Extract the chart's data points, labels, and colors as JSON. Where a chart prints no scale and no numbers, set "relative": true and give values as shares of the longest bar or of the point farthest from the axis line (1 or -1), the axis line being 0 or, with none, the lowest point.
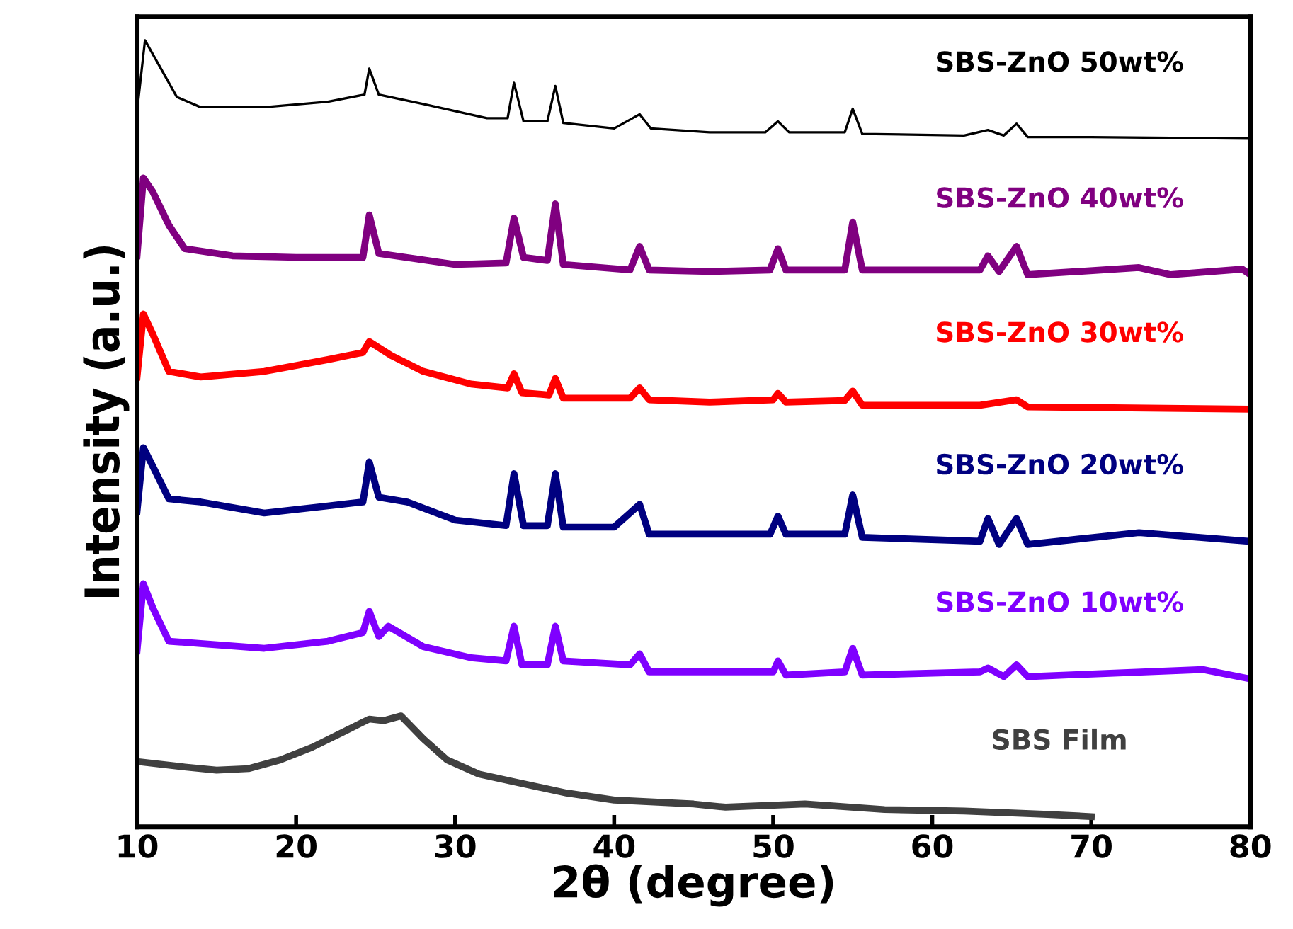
{
  "chart_data": {
    "type": "line",
    "xlabel": "2θ (degree)",
    "ylabel": "Intensity (a.u.)",
    "relative": true,
    "xlim": [
      10,
      80
    ],
    "xticks": [
      10,
      20,
      30,
      40,
      50,
      60,
      70,
      80
    ],
    "tick_labels": "x",
    "grid": false,
    "legend": false,
    "marker": "none",
    "line_style": "solid",
    "series": [
      {
        "name": "SBS-ZnO 50wt%",
        "color": "#000000",
        "x": [
          10,
          10.5,
          11.5,
          12.5,
          14,
          18,
          22,
          24.3,
          24.6,
          25.2,
          28,
          32,
          33.3,
          33.7,
          34.3,
          35.8,
          36.3,
          36.8,
          40,
          41.6,
          42.3,
          46,
          49.5,
          50.3,
          51,
          54.5,
          55,
          55.6,
          62,
          63.5,
          64.5,
          65.3,
          66,
          70,
          80
        ],
        "values": [
          0.91,
          1,
          0.964,
          0.928,
          0.915,
          0.915,
          0.922,
          0.931,
          0.964,
          0.931,
          0.919,
          0.901,
          0.901,
          0.946,
          0.897,
          0.897,
          0.942,
          0.895,
          0.888,
          0.906,
          0.888,
          0.883,
          0.883,
          0.897,
          0.883,
          0.883,
          0.913,
          0.881,
          0.879,
          0.886,
          0.879,
          0.894,
          0.877,
          0.877,
          0.875
        ]
      },
      {
        "name": "SBS-ZnO 40wt%",
        "color": "#800080",
        "x": [
          10,
          10.4,
          11,
          12,
          13,
          16,
          20,
          24.2,
          24.6,
          25.2,
          30,
          33.2,
          33.7,
          34.3,
          35.8,
          36.3,
          36.8,
          41,
          41.6,
          42.2,
          46,
          49.8,
          50.3,
          50.8,
          54.5,
          55,
          55.6,
          63,
          63.5,
          64.2,
          65.3,
          66,
          73,
          75,
          79.5,
          80
        ],
        "values": [
          0.726,
          0.825,
          0.807,
          0.765,
          0.735,
          0.726,
          0.724,
          0.724,
          0.778,
          0.729,
          0.715,
          0.717,
          0.774,
          0.724,
          0.72,
          0.792,
          0.715,
          0.708,
          0.738,
          0.708,
          0.706,
          0.708,
          0.735,
          0.708,
          0.708,
          0.769,
          0.708,
          0.708,
          0.726,
          0.706,
          0.738,
          0.702,
          0.711,
          0.702,
          0.709,
          0.702
        ]
      },
      {
        "name": "SBS-ZnO 30wt%",
        "color": "#ff0000",
        "x": [
          10,
          10.4,
          11,
          12,
          14,
          18,
          22,
          24.2,
          24.6,
          26,
          28,
          31,
          33.3,
          33.7,
          34.2,
          35.9,
          36.3,
          36.8,
          41,
          41.6,
          42.2,
          46,
          50,
          50.3,
          50.8,
          54.5,
          55,
          55.6,
          63,
          65.3,
          66,
          80
        ],
        "values": [
          0.572,
          0.652,
          0.626,
          0.579,
          0.572,
          0.579,
          0.594,
          0.603,
          0.617,
          0.599,
          0.579,
          0.563,
          0.558,
          0.576,
          0.552,
          0.549,
          0.57,
          0.545,
          0.545,
          0.558,
          0.543,
          0.54,
          0.543,
          0.551,
          0.54,
          0.542,
          0.554,
          0.536,
          0.536,
          0.543,
          0.534,
          0.531
        ]
      },
      {
        "name": "SBS-ZnO 20wt%",
        "color": "#000080",
        "x": [
          10,
          10.4,
          11,
          12,
          14,
          18,
          22,
          24.2,
          24.6,
          25.2,
          27,
          30,
          33.2,
          33.7,
          34.3,
          35.8,
          36.3,
          36.8,
          40,
          41.6,
          42.2,
          46,
          49.8,
          50.3,
          50.8,
          54.5,
          55,
          55.6,
          63,
          63.5,
          64.2,
          65.3,
          66,
          73,
          80
        ],
        "values": [
          0.401,
          0.482,
          0.458,
          0.417,
          0.413,
          0.399,
          0.408,
          0.413,
          0.464,
          0.419,
          0.413,
          0.39,
          0.383,
          0.449,
          0.383,
          0.383,
          0.449,
          0.381,
          0.381,
          0.41,
          0.372,
          0.372,
          0.372,
          0.395,
          0.372,
          0.372,
          0.422,
          0.368,
          0.363,
          0.392,
          0.359,
          0.392,
          0.359,
          0.374,
          0.363
        ]
      },
      {
        "name": "SBS-ZnO 10wt%",
        "color": "#7f00ff",
        "x": [
          10,
          10.4,
          11,
          12,
          14,
          18,
          22,
          24.2,
          24.6,
          25.2,
          25.8,
          28,
          31,
          33.2,
          33.7,
          34.2,
          35.8,
          36.3,
          36.8,
          41,
          41.6,
          42.2,
          46,
          50,
          50.3,
          50.8,
          54.5,
          55,
          55.6,
          63,
          63.5,
          64.5,
          65.3,
          66,
          77,
          80
        ],
        "values": [
          0.224,
          0.309,
          0.278,
          0.236,
          0.233,
          0.227,
          0.236,
          0.247,
          0.274,
          0.242,
          0.255,
          0.229,
          0.215,
          0.211,
          0.255,
          0.206,
          0.206,
          0.255,
          0.211,
          0.206,
          0.22,
          0.197,
          0.197,
          0.197,
          0.211,
          0.193,
          0.197,
          0.227,
          0.193,
          0.197,
          0.202,
          0.191,
          0.206,
          0.191,
          0.2,
          0.188
        ]
      },
      {
        "name": "SBS Film",
        "color": "#404040",
        "x": [
          10,
          13,
          15,
          17,
          19,
          21,
          23,
          24.6,
          25.5,
          26.6,
          28,
          29.5,
          31.5,
          34,
          37,
          40,
          45,
          47,
          52,
          57,
          62,
          67,
          70
        ],
        "values": [
          0.083,
          0.076,
          0.072,
          0.074,
          0.085,
          0.101,
          0.121,
          0.137,
          0.135,
          0.141,
          0.112,
          0.085,
          0.067,
          0.056,
          0.043,
          0.034,
          0.029,
          0.025,
          0.029,
          0.022,
          0.02,
          0.016,
          0.013
        ]
      }
    ]
  }
}
